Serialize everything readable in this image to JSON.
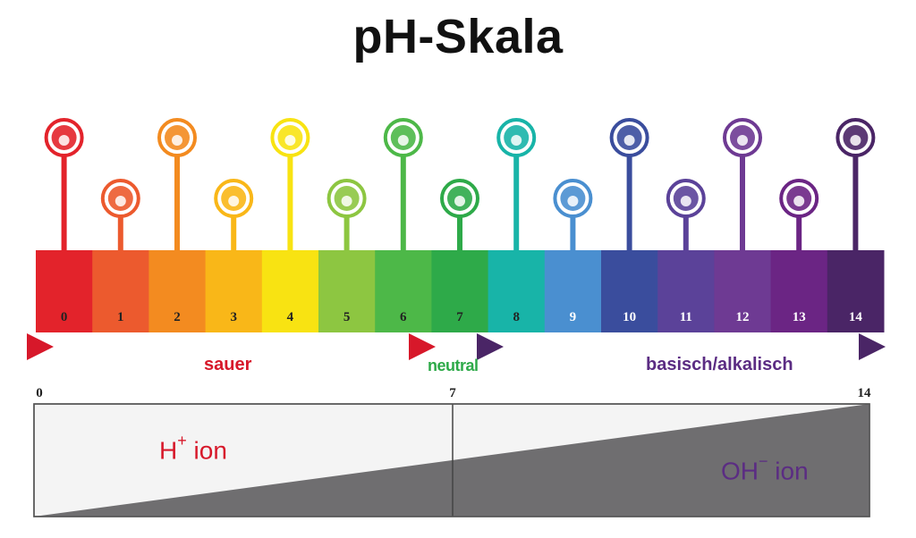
{
  "title": "pH-Skala",
  "ph_values": [
    {
      "value": "0",
      "color": "#e3232b",
      "icon": "battery-icon",
      "tall": true
    },
    {
      "value": "1",
      "color": "#ec5a2e",
      "icon": "stomach-icon",
      "tall": false
    },
    {
      "value": "2",
      "color": "#f38b20",
      "icon": "vinegar-bottle-icon",
      "tall": true
    },
    {
      "value": "3",
      "color": "#f9b718",
      "icon": "orange-juice-icon",
      "tall": false
    },
    {
      "value": "4",
      "color": "#f8e312",
      "icon": "tomato-icon",
      "tall": true
    },
    {
      "value": "5",
      "color": "#8dc641",
      "icon": "coffee-icon",
      "tall": false
    },
    {
      "value": "6",
      "color": "#4db848",
      "icon": "food-jars-icon",
      "tall": true
    },
    {
      "value": "7",
      "color": "#2eaa49",
      "icon": "water-drop-icon",
      "tall": false
    },
    {
      "value": "8",
      "color": "#18b4a8",
      "icon": "sea-water-icon",
      "tall": true
    },
    {
      "value": "9",
      "color": "#4a8fd0",
      "icon": "baking-soda-icon",
      "tall": false
    },
    {
      "value": "10",
      "color": "#3a4d9d",
      "icon": "antacid-stomach-icon",
      "tall": true
    },
    {
      "value": "11",
      "color": "#5b4299",
      "icon": "ammonia-flask-icon",
      "tall": false
    },
    {
      "value": "12",
      "color": "#6e3a93",
      "icon": "soapy-water-icon",
      "tall": true
    },
    {
      "value": "13",
      "color": "#6b2584",
      "icon": "bleach-bottle-icon",
      "tall": false
    },
    {
      "value": "14",
      "color": "#4a2566",
      "icon": "drain-cleaner-icon",
      "tall": true
    }
  ],
  "ranges": {
    "acid": {
      "label": "sauer",
      "color": "#d7182a"
    },
    "neutral": {
      "label": "neutral",
      "color": "#2eaa49"
    },
    "base": {
      "label": "basisch/alkalisch",
      "color": "#5b2c83"
    }
  },
  "ion_chart": {
    "ticks": [
      "0",
      "7",
      "14"
    ],
    "h_ion": {
      "text": "H",
      "sup": "+",
      "suffix": " ion",
      "color": "#d7182a"
    },
    "oh_ion": {
      "text": "OH",
      "sup": "−",
      "suffix": " ion",
      "color": "#5b2c83"
    },
    "fill_light": "#f4f4f4",
    "fill_dark": "#6f6e70"
  }
}
